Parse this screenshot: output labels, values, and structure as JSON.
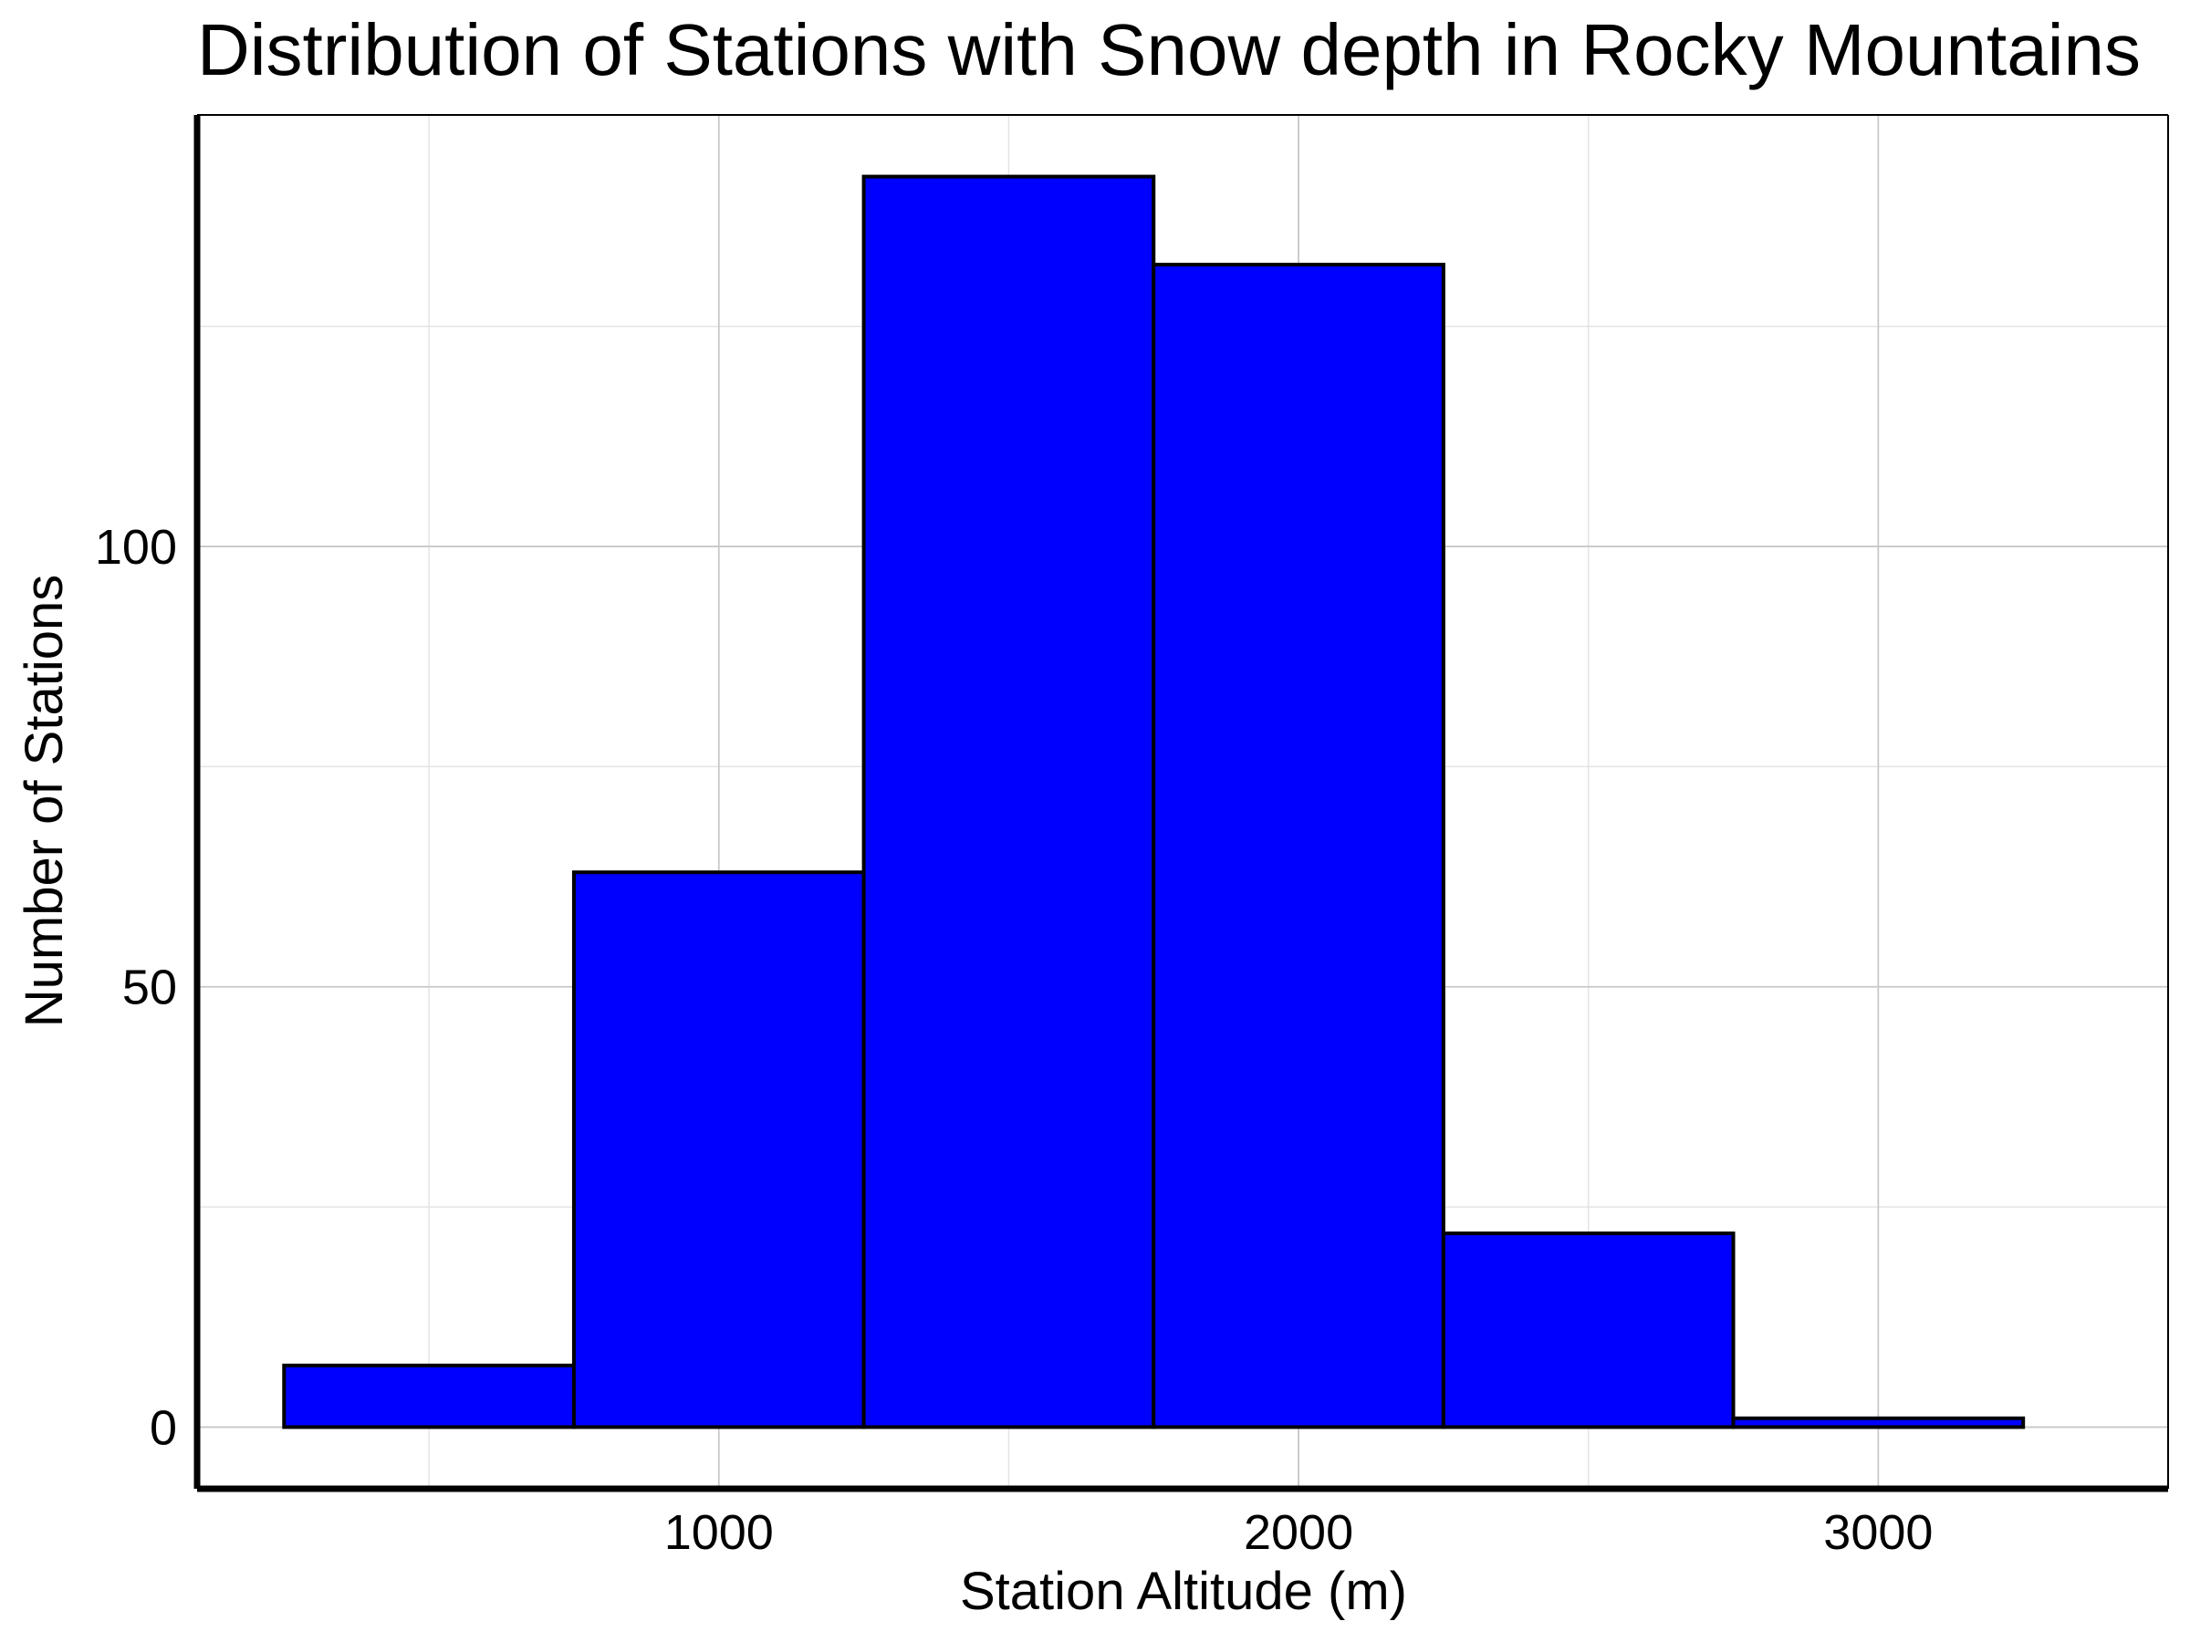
{
  "chart_data": {
    "type": "bar",
    "title": "Distribution of Stations with Snow depth in Rocky Mountains",
    "xlabel": "Station Altitude (m)",
    "ylabel": "Number of Stations",
    "bins": [
      {
        "start": 250,
        "end": 750,
        "count": 7
      },
      {
        "start": 750,
        "end": 1250,
        "count": 63
      },
      {
        "start": 1250,
        "end": 1750,
        "count": 142
      },
      {
        "start": 1750,
        "end": 2250,
        "count": 132
      },
      {
        "start": 2250,
        "end": 2750,
        "count": 22
      },
      {
        "start": 2750,
        "end": 3250,
        "count": 1
      }
    ],
    "xlim": [
      100,
      3500
    ],
    "ylim": [
      -7,
      149
    ],
    "x_ticks": [
      1000,
      2000,
      3000
    ],
    "y_ticks": [
      0,
      50,
      100
    ],
    "x_minor_grid": [
      500,
      1500,
      2500
    ],
    "y_minor_grid": [
      25,
      75,
      125
    ],
    "grid": true,
    "bar_color": "#0000ff",
    "edge_color": "#000000",
    "grid_color": "#c8c8c8"
  }
}
